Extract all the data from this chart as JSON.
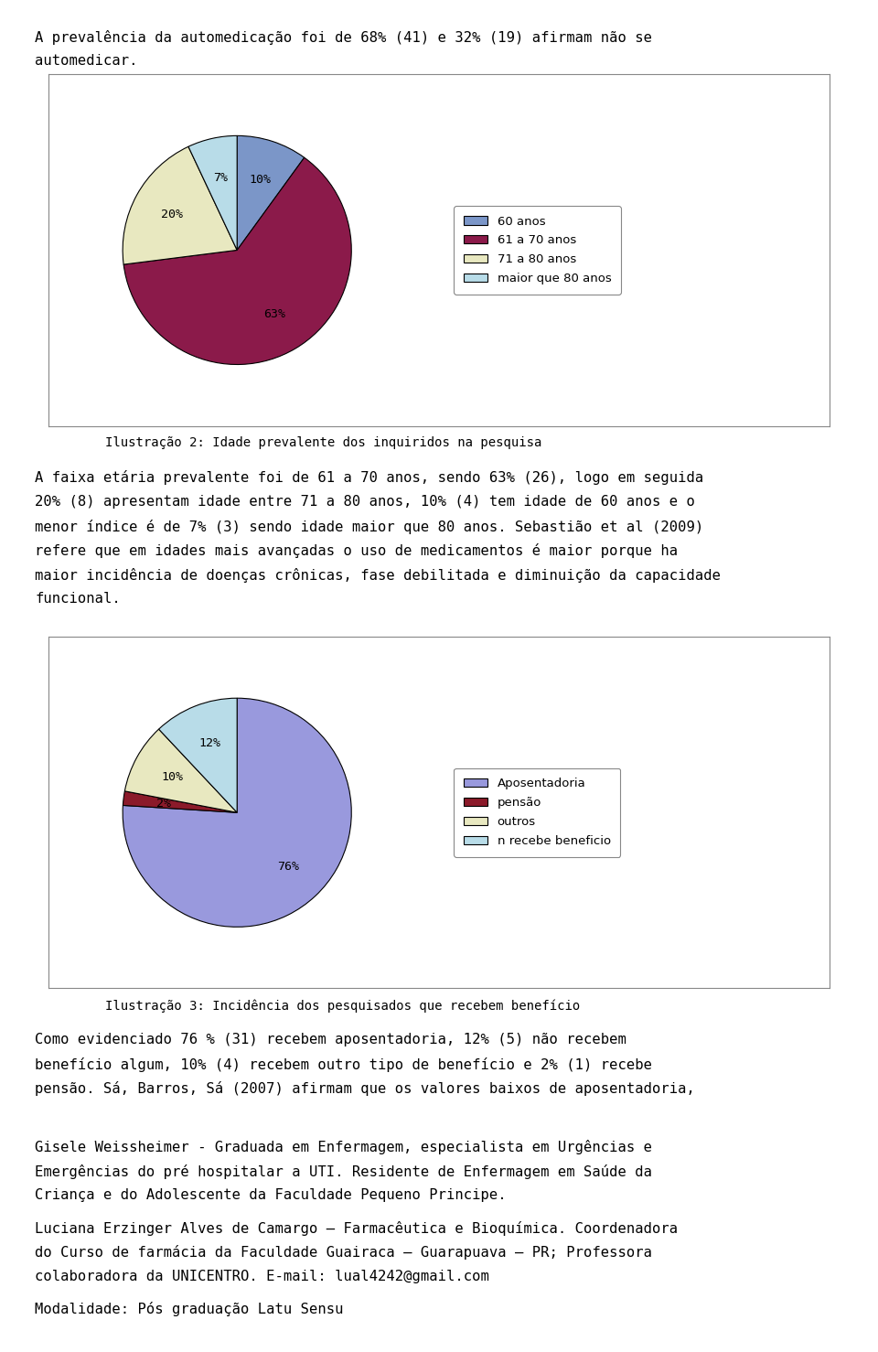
{
  "page_bg": "#ffffff",
  "text_color": "#000000",
  "top_text_line1": "A prevalência da automedicação foi de 68% (41) e 32% (19) afirmam não se",
  "top_text_line2": "automedicar.",
  "pie1": {
    "values": [
      10,
      63,
      20,
      7
    ],
    "labels": [
      "60 anos",
      "61 a 70 anos",
      "71 a 80 anos",
      "maior que 80 anos"
    ],
    "colors": [
      "#7b96c8",
      "#8b1a4a",
      "#e8e8c0",
      "#b8dce8"
    ],
    "pct_labels": [
      "10%",
      "63%",
      "20%",
      "7%"
    ],
    "startangle": 90,
    "caption": "Ilustração 2: Idade prevalente dos inquiridos na pesquisa"
  },
  "middle_text_lines": [
    "A faixa etária prevalente foi de 61 a 70 anos, sendo 63% (26), logo em seguida",
    "20% (8) apresentam idade entre 71 a 80 anos, 10% (4) tem idade de 60 anos e o",
    "menor índice é de 7% (3) sendo idade maior que 80 anos. Sebastião et al (2009)",
    "refere que em idades mais avançadas o uso de medicamentos é maior porque ha",
    "maior incidência de doenças crônicas, fase debilitada e diminuição da capacidade",
    "funcional."
  ],
  "italic_word": "et al",
  "pie2": {
    "values": [
      76,
      2,
      10,
      12
    ],
    "labels": [
      "Aposentadoria",
      "pensão",
      "outros",
      "n recebe beneficio"
    ],
    "colors": [
      "#9999dd",
      "#8b1a2a",
      "#e8e8c0",
      "#b8dce8"
    ],
    "pct_labels": [
      "76%",
      "2%",
      "10%",
      "12%"
    ],
    "startangle": 90,
    "caption": "Ilustração 3: Incidência dos pesquisados que recebem benefício"
  },
  "bottom_text_lines": [
    "Como evidenciado 76 % (31) recebem aposentadoria, 12% (5) não recebem",
    "benefício algum, 10% (4) recebem outro tipo de benefício e 2% (1) recebe",
    "pensão. Sá, Barros, Sá (2007) afirmam que os valores baixos de aposentadoria,"
  ],
  "author1_lines": [
    "Gisele Weissheimer - Graduada em Enfermagem, especialista em Urgências e",
    "Emergências do pré hospitalar a UTI. Residente de Enfermagem em Saúde da",
    "Criança e do Adolescente da Faculdade Pequeno Principe."
  ],
  "author2_lines": [
    "Luciana Erzinger Alves de Camargo – Farmacêutica e Bioquímica. Coordenadora",
    "do Curso de farmácia da Faculdade Guairaca – Guarapuava – PR; Professora",
    "colaboradora da UNICENTRO. E-mail: lual4242@gmail.com"
  ],
  "email": "lual4242@gmail.com",
  "final_line": "Modalidade: Pós graduação Latu Sensu"
}
